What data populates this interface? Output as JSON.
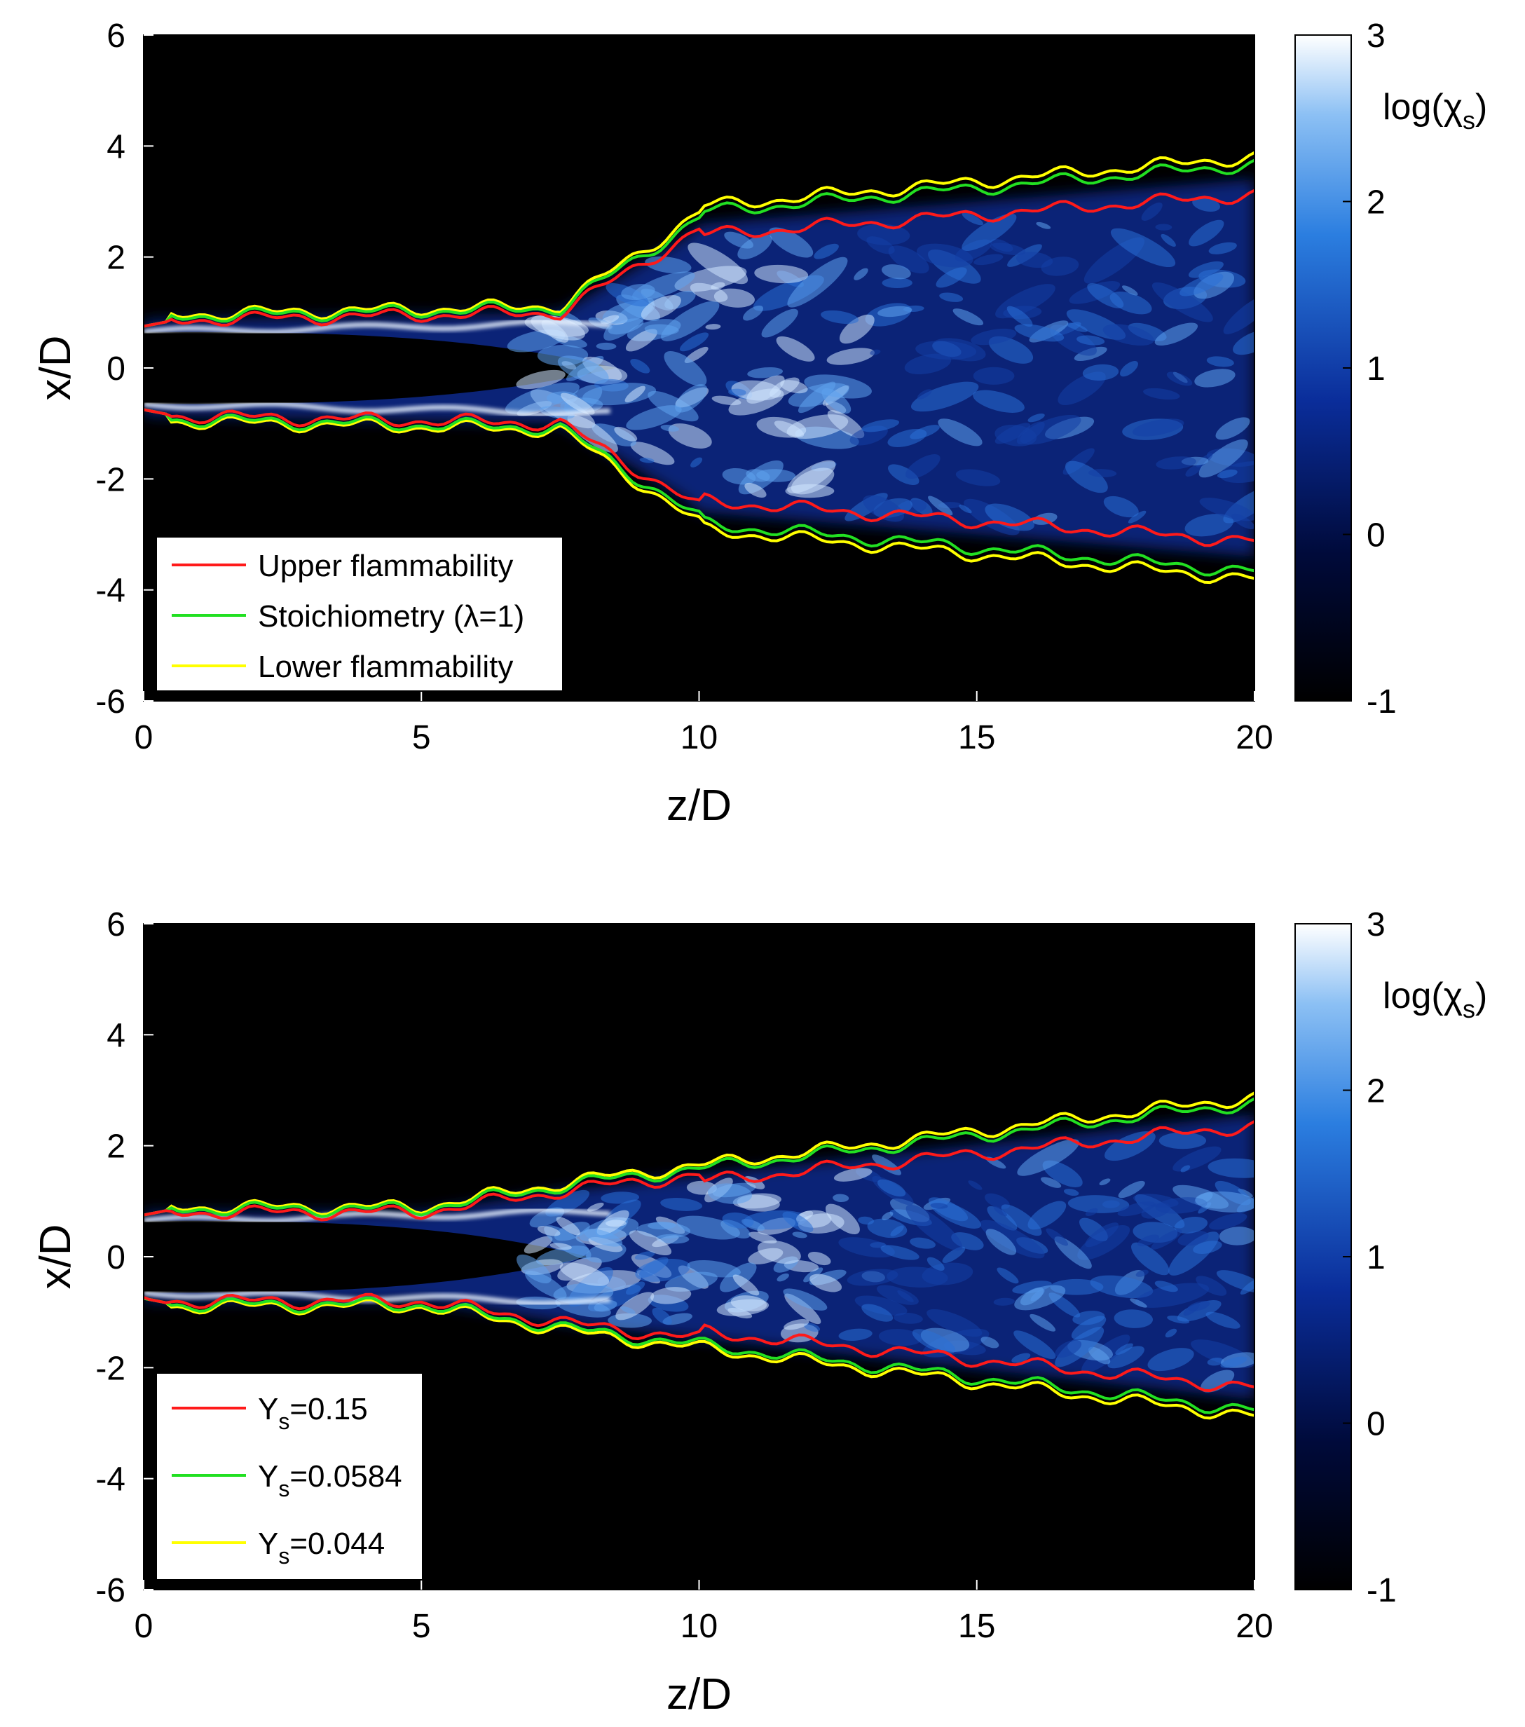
{
  "chart_data": [
    {
      "type": "heatmap",
      "xlabel": "z/D",
      "ylabel": "x/D",
      "xlim": [
        0,
        20
      ],
      "ylim": [
        -6,
        6
      ],
      "xticks": [
        "0",
        "5",
        "10",
        "15",
        "20"
      ],
      "yticks": [
        "6",
        "4",
        "2",
        "0",
        "-2",
        "-4",
        "-6"
      ],
      "colorbar": {
        "label": "log(χ",
        "label_sub": "s",
        "label_close": ")",
        "range": [
          -1,
          3
        ],
        "ticks": [
          "3",
          "2",
          "1",
          "0",
          "-1"
        ]
      },
      "legend_position": "bottom-left",
      "series": [
        {
          "name": "Upper flammability",
          "color": "#ff1a1a"
        },
        {
          "name": "Stoichiometry (λ=1)",
          "color": "#22e022"
        },
        {
          "name": "Lower flammability",
          "color": "#ffff00"
        }
      ]
    },
    {
      "type": "heatmap",
      "xlabel": "z/D",
      "ylabel": "x/D",
      "xlim": [
        0,
        20
      ],
      "ylim": [
        -6,
        6
      ],
      "xticks": [
        "0",
        "5",
        "10",
        "15",
        "20"
      ],
      "yticks": [
        "6",
        "4",
        "2",
        "0",
        "-2",
        "-4",
        "-6"
      ],
      "colorbar": {
        "label": "log(χ",
        "label_sub": "s",
        "label_close": ")",
        "range": [
          -1,
          3
        ],
        "ticks": [
          "3",
          "2",
          "1",
          "0",
          "-1"
        ]
      },
      "legend_position": "bottom-left",
      "series": [
        {
          "name": "Y",
          "sub": "s",
          "eq": "=0.15",
          "color": "#ff1a1a"
        },
        {
          "name": "Y",
          "sub": "s",
          "eq": "=0.0584",
          "color": "#22e022"
        },
        {
          "name": "Y",
          "sub": "s",
          "eq": "=0.044",
          "color": "#ffff00"
        }
      ]
    }
  ]
}
